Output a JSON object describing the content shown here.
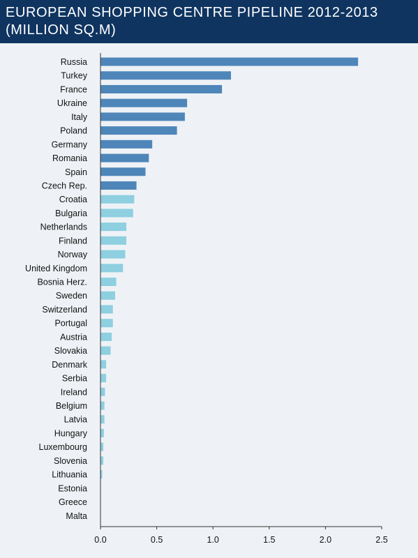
{
  "chart_data": {
    "type": "bar",
    "orientation": "horizontal",
    "title": "EUROPEAN SHOPPING CENTRE PIPELINE 2012-2013 (MILLION SQ.M)",
    "xlabel": "",
    "ylabel": "",
    "xlim": [
      0,
      2.5
    ],
    "xticks": [
      "0.0",
      "0.5",
      "1.0",
      "1.5",
      "2.0",
      "2.5"
    ],
    "xtick_values": [
      0,
      0.5,
      1.0,
      1.5,
      2.0,
      2.5
    ],
    "grid": false,
    "colors": {
      "dark": "#4f86b9",
      "light": "#8ecfe0",
      "axis": "#333333",
      "background": "#eef2f6",
      "header": "#0f3460"
    },
    "categories": [
      "Russia",
      "Turkey",
      "France",
      "Ukraine",
      "Italy",
      "Poland",
      "Germany",
      "Romania",
      "Spain",
      "Czech Rep.",
      "Croatia",
      "Bulgaria",
      "Netherlands",
      "Finland",
      "Norway",
      "United Kingdom",
      "Bosnia Herz.",
      "Sweden",
      "Switzerland",
      "Portugal",
      "Austria",
      "Slovakia",
      "Denmark",
      "Serbia",
      "Ireland",
      "Belgium",
      "Latvia",
      "Hungary",
      "Luxembourg",
      "Slovenia",
      "Lithuania",
      "Estonia",
      "Greece",
      "Malta"
    ],
    "values": [
      2.29,
      1.16,
      1.08,
      0.77,
      0.75,
      0.68,
      0.46,
      0.43,
      0.4,
      0.32,
      0.3,
      0.29,
      0.23,
      0.23,
      0.22,
      0.2,
      0.14,
      0.13,
      0.11,
      0.11,
      0.1,
      0.09,
      0.05,
      0.05,
      0.04,
      0.035,
      0.035,
      0.03,
      0.025,
      0.025,
      0.015,
      0,
      0,
      0
    ],
    "bar_color_groups": [
      "dark",
      "dark",
      "dark",
      "dark",
      "dark",
      "dark",
      "dark",
      "dark",
      "dark",
      "dark",
      "light",
      "light",
      "light",
      "light",
      "light",
      "light",
      "light",
      "light",
      "light",
      "light",
      "light",
      "light",
      "light",
      "light",
      "light",
      "light",
      "light",
      "light",
      "light",
      "light",
      "light",
      "light",
      "light",
      "light"
    ]
  }
}
